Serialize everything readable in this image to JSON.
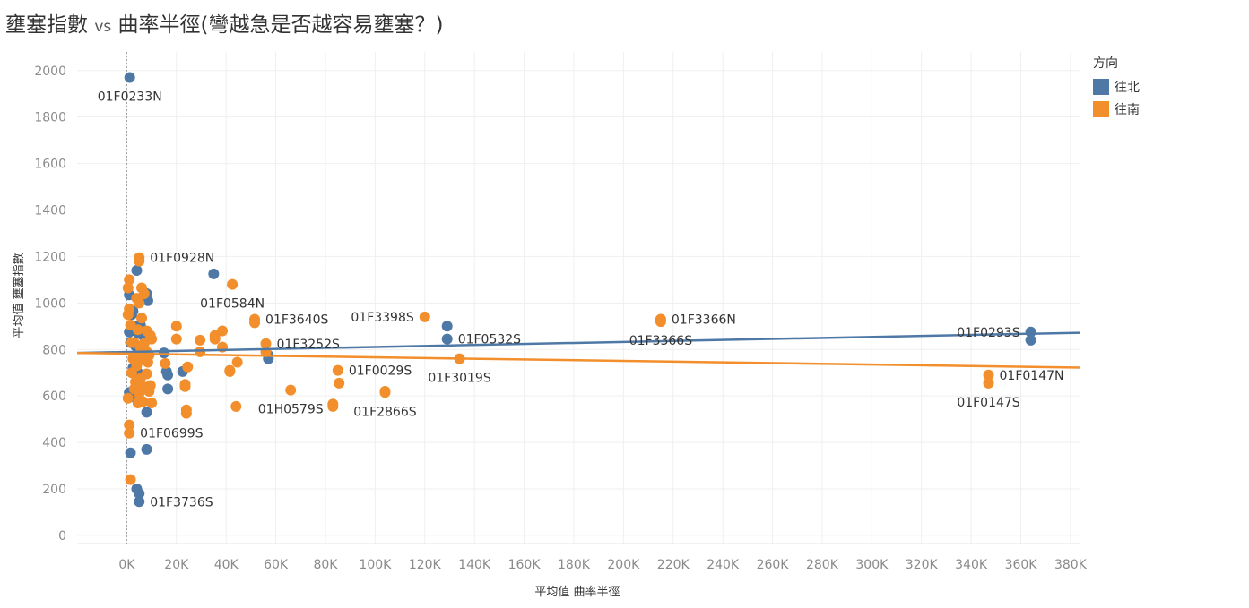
{
  "title": {
    "part1": "壅塞指數",
    "vs": "vs",
    "part2": "曲率半徑(彎越急是否越容易壅塞？)"
  },
  "legend": {
    "title": "方向",
    "items": [
      {
        "label": "往北",
        "color": "#4e79a7"
      },
      {
        "label": "往南",
        "color": "#f28e2b"
      }
    ]
  },
  "chart_data": {
    "type": "scatter",
    "xlabel": "平均值 曲率半徑",
    "ylabel": "平均值 壅塞指數",
    "xlim": [
      -20000,
      384000
    ],
    "ylim": [
      -35,
      2080
    ],
    "x_ticks": [
      0,
      20000,
      40000,
      60000,
      80000,
      100000,
      120000,
      140000,
      160000,
      180000,
      200000,
      220000,
      240000,
      260000,
      280000,
      300000,
      320000,
      340000,
      360000,
      380000
    ],
    "x_tick_labels": [
      "0K",
      "20K",
      "40K",
      "60K",
      "80K",
      "100K",
      "120K",
      "140K",
      "160K",
      "180K",
      "200K",
      "220K",
      "240K",
      "260K",
      "280K",
      "300K",
      "320K",
      "340K",
      "360K",
      "380K"
    ],
    "y_ticks": [
      0,
      200,
      400,
      600,
      800,
      1000,
      1200,
      1400,
      1600,
      1800,
      2000
    ],
    "y_tick_labels": [
      "0",
      "200",
      "400",
      "600",
      "800",
      "1000",
      "1200",
      "1400",
      "1600",
      "1800",
      "2000"
    ],
    "reference_line_x": 0,
    "series": [
      {
        "name": "往北",
        "color": "#4e79a7",
        "trend": [
          [
            -20000,
            785
          ],
          [
            384000,
            872
          ]
        ],
        "points": [
          [
            1200,
            1970
          ],
          [
            4000,
            1140
          ],
          [
            1000,
            1035
          ],
          [
            8000,
            1040
          ],
          [
            8500,
            1010
          ],
          [
            2500,
            965
          ],
          [
            2000,
            950
          ],
          [
            3000,
            900
          ],
          [
            5500,
            905
          ],
          [
            1000,
            875
          ],
          [
            4500,
            870
          ],
          [
            6500,
            860
          ],
          [
            1500,
            830
          ],
          [
            3500,
            815
          ],
          [
            6500,
            805
          ],
          [
            5000,
            790
          ],
          [
            15000,
            785
          ],
          [
            22500,
            705
          ],
          [
            16000,
            705
          ],
          [
            16500,
            690
          ],
          [
            2500,
            720
          ],
          [
            4500,
            700
          ],
          [
            4000,
            685
          ],
          [
            1000,
            615
          ],
          [
            3000,
            595
          ],
          [
            5000,
            615
          ],
          [
            16500,
            630
          ],
          [
            8000,
            530
          ],
          [
            1500,
            355
          ],
          [
            8000,
            370
          ],
          [
            4000,
            200
          ],
          [
            5000,
            180
          ],
          [
            5000,
            145
          ],
          [
            35000,
            1125
          ],
          [
            57000,
            775
          ],
          [
            57000,
            760
          ],
          [
            129000,
            900
          ],
          [
            129000,
            845
          ],
          [
            364000,
            875
          ],
          [
            364000,
            840
          ]
        ]
      },
      {
        "name": "往南",
        "color": "#f28e2b",
        "trend": [
          [
            -20000,
            785
          ],
          [
            384000,
            722
          ]
        ],
        "points": [
          [
            5000,
            1195
          ],
          [
            5000,
            1180
          ],
          [
            1000,
            1100
          ],
          [
            500,
            1065
          ],
          [
            6000,
            1065
          ],
          [
            7000,
            1040
          ],
          [
            4000,
            1020
          ],
          [
            5000,
            1000
          ],
          [
            1000,
            975
          ],
          [
            500,
            950
          ],
          [
            6000,
            935
          ],
          [
            1500,
            905
          ],
          [
            4500,
            885
          ],
          [
            8000,
            880
          ],
          [
            9500,
            860
          ],
          [
            10000,
            845
          ],
          [
            2000,
            830
          ],
          [
            3000,
            830
          ],
          [
            7000,
            825
          ],
          [
            5500,
            810
          ],
          [
            8000,
            790
          ],
          [
            9000,
            775
          ],
          [
            2500,
            760
          ],
          [
            5500,
            755
          ],
          [
            8500,
            745
          ],
          [
            4000,
            730
          ],
          [
            2000,
            700
          ],
          [
            8000,
            695
          ],
          [
            5500,
            675
          ],
          [
            3500,
            660
          ],
          [
            9500,
            645
          ],
          [
            6500,
            640
          ],
          [
            3000,
            630
          ],
          [
            9000,
            620
          ],
          [
            5000,
            610
          ],
          [
            500,
            590
          ],
          [
            6500,
            575
          ],
          [
            4500,
            570
          ],
          [
            10000,
            570
          ],
          [
            1000,
            475
          ],
          [
            1000,
            440
          ],
          [
            1500,
            240
          ],
          [
            20000,
            900
          ],
          [
            20000,
            845
          ],
          [
            15500,
            740
          ],
          [
            24500,
            725
          ],
          [
            23500,
            640
          ],
          [
            23500,
            650
          ],
          [
            24000,
            540
          ],
          [
            24000,
            525
          ],
          [
            29500,
            840
          ],
          [
            29500,
            790
          ],
          [
            35500,
            845
          ],
          [
            35500,
            860
          ],
          [
            38500,
            880
          ],
          [
            38500,
            810
          ],
          [
            41500,
            710
          ],
          [
            41500,
            705
          ],
          [
            44500,
            745
          ],
          [
            44000,
            555
          ],
          [
            42500,
            1080
          ],
          [
            51500,
            930
          ],
          [
            51500,
            915
          ],
          [
            56000,
            825
          ],
          [
            56000,
            790
          ],
          [
            66000,
            625
          ],
          [
            85000,
            710
          ],
          [
            85500,
            655
          ],
          [
            83000,
            565
          ],
          [
            83000,
            555
          ],
          [
            104000,
            620
          ],
          [
            104000,
            615
          ],
          [
            120000,
            940
          ],
          [
            134000,
            760
          ],
          [
            215000,
            930
          ],
          [
            215000,
            920
          ],
          [
            347000,
            690
          ],
          [
            347000,
            655
          ]
        ]
      }
    ],
    "annotations": [
      {
        "text": "01F0233N",
        "x": 1200,
        "y": 1970,
        "anchor": "below"
      },
      {
        "text": "01F0928N",
        "x": 5000,
        "y": 1195,
        "anchor": "right"
      },
      {
        "text": "01F0584N",
        "x": 42500,
        "y": 1080,
        "anchor": "below"
      },
      {
        "text": "01F3640S",
        "x": 51500,
        "y": 930,
        "anchor": "right"
      },
      {
        "text": "01F3252S",
        "x": 56000,
        "y": 825,
        "anchor": "right"
      },
      {
        "text": "01F3398S",
        "x": 120000,
        "y": 940,
        "anchor": "left"
      },
      {
        "text": "01F0532S",
        "x": 129000,
        "y": 845,
        "anchor": "right"
      },
      {
        "text": "01F3366N",
        "x": 215000,
        "y": 930,
        "anchor": "right"
      },
      {
        "text": "01F3366S",
        "x": 215000,
        "y": 920,
        "anchor": "below"
      },
      {
        "text": "01F0293S",
        "x": 364000,
        "y": 875,
        "anchor": "left"
      },
      {
        "text": "01F0029S",
        "x": 85000,
        "y": 710,
        "anchor": "right"
      },
      {
        "text": "01F3019S",
        "x": 134000,
        "y": 760,
        "anchor": "below"
      },
      {
        "text": "01F0147N",
        "x": 347000,
        "y": 690,
        "anchor": "right"
      },
      {
        "text": "01F0147S",
        "x": 347000,
        "y": 655,
        "anchor": "below"
      },
      {
        "text": "01H0579S",
        "x": 66000,
        "y": 625,
        "anchor": "below"
      },
      {
        "text": "01F2866S",
        "x": 104000,
        "y": 615,
        "anchor": "below"
      },
      {
        "text": "01F0699S",
        "x": 1000,
        "y": 440,
        "anchor": "right"
      },
      {
        "text": "01F3736S",
        "x": 5000,
        "y": 145,
        "anchor": "right"
      }
    ]
  }
}
